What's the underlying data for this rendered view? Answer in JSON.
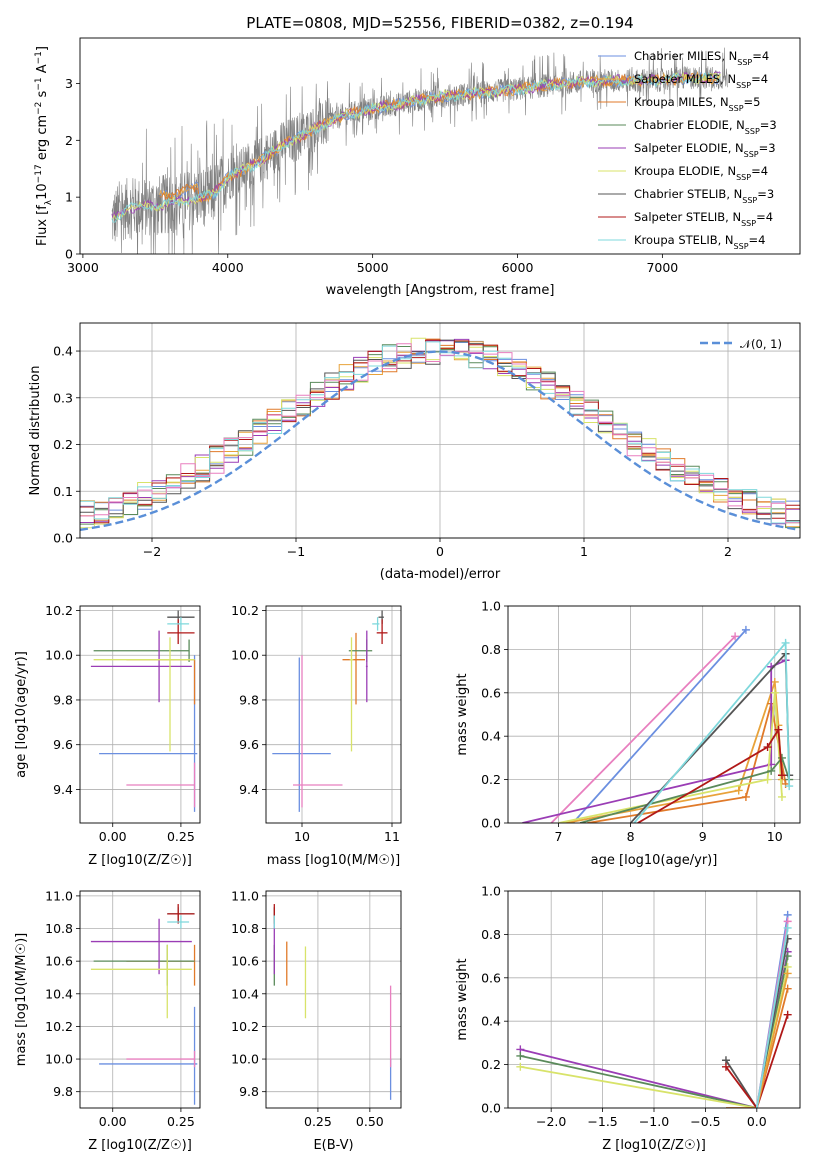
{
  "title": "PLATE=0808, MJD=52556, FIBERID=0382, z=0.194",
  "colors": {
    "Chabrier MILES": "#6b8fe0",
    "Salpeter MILES": "#e8a23a",
    "Kroupa MILES": "#e07a2a",
    "Chabrier ELODIE": "#5a8a5a",
    "Salpeter ELODIE": "#9a3db5",
    "Kroupa ELODIE": "#d8e36a",
    "Chabrier STELIB": "#555555",
    "Salpeter STELIB": "#b01818",
    "Kroupa STELIB": "#7fd8dc",
    "pink": "#e87fbf"
  },
  "chart_data": [
    {
      "type": "line",
      "id": "spectrum",
      "title": "PLATE=0808, MJD=52556, FIBERID=0382, z=0.194",
      "xlabel": "wavelength [Angstrom, rest frame]",
      "ylabel_parts": [
        "Flux [f",
        "λ",
        "10",
        "−17",
        " erg cm",
        "−2",
        " s",
        "−1",
        " A",
        "−1",
        "]"
      ],
      "xlim": [
        2980,
        7950
      ],
      "ylim": [
        0,
        3.8
      ],
      "xticks": [
        3000,
        4000,
        5000,
        6000,
        7000
      ],
      "yticks": [
        0,
        1,
        2,
        3
      ],
      "data_range": [
        3200,
        7450
      ],
      "continuum": [
        [
          3200,
          0.6
        ],
        [
          3300,
          0.8
        ],
        [
          3500,
          0.85
        ],
        [
          3650,
          0.9
        ],
        [
          3900,
          1.05
        ],
        [
          4000,
          1.35
        ],
        [
          4200,
          1.6
        ],
        [
          4400,
          1.95
        ],
        [
          4600,
          2.2
        ],
        [
          4800,
          2.45
        ],
        [
          5000,
          2.55
        ],
        [
          5200,
          2.65
        ],
        [
          5400,
          2.75
        ],
        [
          5600,
          2.8
        ],
        [
          5800,
          2.85
        ],
        [
          6000,
          2.9
        ],
        [
          6300,
          3.0
        ],
        [
          6600,
          3.05
        ],
        [
          6900,
          3.05
        ],
        [
          7200,
          3.1
        ],
        [
          7450,
          3.1
        ]
      ],
      "legend": [
        {
          "label": "Chabrier MILES, N",
          "sub": "SSP",
          "tail": "=4"
        },
        {
          "label": "Salpeter MILES, N",
          "sub": "SSP",
          "tail": "=4"
        },
        {
          "label": "Kroupa MILES, N",
          "sub": "SSP",
          "tail": "=5"
        },
        {
          "label": "Chabrier ELODIE, N",
          "sub": "SSP",
          "tail": "=3"
        },
        {
          "label": "Salpeter ELODIE, N",
          "sub": "SSP",
          "tail": "=3"
        },
        {
          "label": "Kroupa ELODIE, N",
          "sub": "SSP",
          "tail": "=4"
        },
        {
          "label": "Chabrier STELIB, N",
          "sub": "SSP",
          "tail": "=3"
        },
        {
          "label": "Salpeter STELIB, N",
          "sub": "SSP",
          "tail": "=4"
        },
        {
          "label": "Kroupa STELIB, N",
          "sub": "SSP",
          "tail": "=4"
        }
      ]
    },
    {
      "type": "bar",
      "id": "residuals",
      "xlabel": "(data-model)/error",
      "ylabel": "Normed distribution",
      "xlim": [
        -2.5,
        2.5
      ],
      "ylim": [
        0,
        0.46
      ],
      "xticks": [
        -2,
        -1,
        0,
        1,
        2
      ],
      "yticks": [
        0.0,
        0.1,
        0.2,
        0.3,
        0.4
      ],
      "legend": "𝒩(0, 1)",
      "legend_position": "top-right",
      "grid": true,
      "bin_width": 0.1
    },
    {
      "type": "scatter",
      "id": "age-vs-Z",
      "xlabel": "Z [log10(Z/Z☉)]",
      "ylabel": "age  [log10(age/yr)]",
      "xlim": [
        -0.12,
        0.32
      ],
      "ylim": [
        9.25,
        10.22
      ],
      "xticks": [
        0.0,
        0.25
      ],
      "yticks": [
        9.4,
        9.6,
        9.8,
        10.0,
        10.2
      ],
      "grid": true,
      "points": [
        {
          "c": "#6b8fe0",
          "x": 0.3,
          "y": 9.56,
          "xerr": [
            0.35,
            0.01
          ],
          "yerr": [
            0.26,
            0.44
          ]
        },
        {
          "c": "#e87fbf",
          "x": 0.3,
          "y": 9.42,
          "xerr": [
            0.25,
            0.0
          ],
          "yerr": [
            0.1,
            0.1
          ]
        },
        {
          "c": "#e07a2a",
          "x": 0.3,
          "y": 9.98,
          "xerr": [
            0.25,
            0.0
          ],
          "yerr": [
            0.2,
            0.0
          ]
        },
        {
          "c": "#5a8a5a",
          "x": 0.28,
          "y": 10.02,
          "xerr": [
            0.35,
            0.0
          ],
          "yerr": [
            0.05,
            0.05
          ]
        },
        {
          "c": "#9a3db5",
          "x": 0.17,
          "y": 9.95,
          "xerr": [
            0.25,
            0.12
          ],
          "yerr": [
            0.16,
            0.16
          ]
        },
        {
          "c": "#d8e36a",
          "x": 0.21,
          "y": 9.98,
          "xerr": [
            0.28,
            0.09
          ],
          "yerr": [
            0.41,
            0.1
          ]
        },
        {
          "c": "#555555",
          "x": 0.24,
          "y": 10.17,
          "xerr": [
            0.04,
            0.06
          ],
          "yerr": [
            0.03,
            0.03
          ]
        },
        {
          "c": "#b01818",
          "x": 0.24,
          "y": 10.1,
          "xerr": [
            0.04,
            0.06
          ],
          "yerr": [
            0.05,
            0.06
          ]
        },
        {
          "c": "#7fd8dc",
          "x": 0.25,
          "y": 10.14,
          "xerr": [
            0.05,
            0.03
          ],
          "yerr": [
            0.03,
            0.03
          ]
        }
      ]
    },
    {
      "type": "scatter",
      "id": "age-vs-mass",
      "xlabel": "mass [log10(M/M☉)]",
      "ylabel": "",
      "xlim": [
        9.6,
        11.1
      ],
      "ylim": [
        9.25,
        10.22
      ],
      "xticks": [
        10,
        11
      ],
      "yticks": [
        9.4,
        9.6,
        9.8,
        10.0,
        10.2
      ],
      "grid": true,
      "points": [
        {
          "c": "#6b8fe0",
          "x": 9.97,
          "y": 9.56,
          "xerr": [
            0.3,
            0.35
          ],
          "yerr": [
            0.26,
            0.43
          ]
        },
        {
          "c": "#e87fbf",
          "x": 10.0,
          "y": 9.42,
          "xerr": [
            0.1,
            0.45
          ],
          "yerr": [
            0.1,
            0.58
          ]
        },
        {
          "c": "#e07a2a",
          "x": 10.6,
          "y": 9.98,
          "xerr": [
            0.15,
            0.1
          ],
          "yerr": [
            0.2,
            0.12
          ]
        },
        {
          "c": "#5a8a5a",
          "x": 10.72,
          "y": 10.02,
          "xerr": [
            0.2,
            0.06
          ],
          "yerr": [
            0.05,
            0.05
          ]
        },
        {
          "c": "#9a3db5",
          "x": 10.72,
          "y": 9.95,
          "xerr": [
            0.01,
            0.01
          ],
          "yerr": [
            0.16,
            0.16
          ]
        },
        {
          "c": "#d8e36a",
          "x": 10.55,
          "y": 9.98,
          "xerr": [
            0.02,
            0.02
          ],
          "yerr": [
            0.41,
            0.1
          ]
        },
        {
          "c": "#555555",
          "x": 10.89,
          "y": 10.17,
          "xerr": [
            0.04,
            0.02
          ],
          "yerr": [
            0.03,
            0.03
          ]
        },
        {
          "c": "#b01818",
          "x": 10.89,
          "y": 10.1,
          "xerr": [
            0.06,
            0.06
          ],
          "yerr": [
            0.05,
            0.06
          ]
        },
        {
          "c": "#7fd8dc",
          "x": 10.84,
          "y": 10.14,
          "xerr": [
            0.06,
            0.02
          ],
          "yerr": [
            0.03,
            0.03
          ]
        }
      ]
    },
    {
      "type": "line",
      "id": "weight-vs-age",
      "xlabel": "age  [log10(age/yr)]",
      "ylabel": "mass weight",
      "xlim": [
        6.3,
        10.35
      ],
      "ylim": [
        0,
        1
      ],
      "xticks": [
        7,
        8,
        9,
        10
      ],
      "yticks": [
        0.0,
        0.2,
        0.4,
        0.6,
        0.8,
        1.0
      ],
      "grid": true,
      "series": [
        {
          "c": "#e87fbf",
          "pts": [
            [
              6.9,
              0.0
            ],
            [
              9.45,
              0.86
            ]
          ]
        },
        {
          "c": "#6b8fe0",
          "pts": [
            [
              7.2,
              0.0
            ],
            [
              9.6,
              0.89
            ]
          ]
        },
        {
          "c": "#e8a23a",
          "pts": [
            [
              7.1,
              0.0
            ],
            [
              9.5,
              0.15
            ],
            [
              10.0,
              0.65
            ],
            [
              10.05,
              0.45
            ],
            [
              10.1,
              0.2
            ]
          ]
        },
        {
          "c": "#e07a2a",
          "pts": [
            [
              7.4,
              0.0
            ],
            [
              9.6,
              0.12
            ],
            [
              9.95,
              0.55
            ],
            [
              10.15,
              0.18
            ]
          ]
        },
        {
          "c": "#9a3db5",
          "pts": [
            [
              6.5,
              0.0
            ],
            [
              9.95,
              0.27
            ],
            [
              9.95,
              0.72
            ],
            [
              10.15,
              0.75
            ]
          ]
        },
        {
          "c": "#d8e36a",
          "pts": [
            [
              7.0,
              0.0
            ],
            [
              9.9,
              0.2
            ],
            [
              10.0,
              0.6
            ],
            [
              10.1,
              0.12
            ]
          ]
        },
        {
          "c": "#5a8a5a",
          "pts": [
            [
              7.3,
              0.0
            ],
            [
              9.95,
              0.24
            ],
            [
              10.1,
              0.3
            ],
            [
              10.2,
              0.2
            ]
          ]
        },
        {
          "c": "#555555",
          "pts": [
            [
              8.0,
              0.0
            ],
            [
              10.15,
              0.78
            ],
            [
              10.2,
              0.22
            ]
          ]
        },
        {
          "c": "#b01818",
          "pts": [
            [
              8.1,
              0.0
            ],
            [
              9.9,
              0.35
            ],
            [
              10.05,
              0.43
            ],
            [
              10.1,
              0.22
            ]
          ]
        },
        {
          "c": "#7fd8dc",
          "pts": [
            [
              8.05,
              0.0
            ],
            [
              10.15,
              0.83
            ],
            [
              10.2,
              0.17
            ]
          ]
        }
      ]
    },
    {
      "type": "scatter",
      "id": "mass-vs-Z",
      "xlabel": "Z [log10(Z/Z☉)]",
      "ylabel": "mass [log10(M/M☉)]",
      "xlim": [
        -0.12,
        0.32
      ],
      "ylim": [
        9.7,
        11.03
      ],
      "xticks": [
        0.0,
        0.25
      ],
      "yticks": [
        9.8,
        10.0,
        10.2,
        10.4,
        10.6,
        10.8,
        11.0
      ],
      "grid": true,
      "points": [
        {
          "c": "#6b8fe0",
          "x": 0.3,
          "y": 9.97,
          "xerr": [
            0.35,
            0.01
          ],
          "yerr": [
            0.25,
            0.35
          ]
        },
        {
          "c": "#e87fbf",
          "x": 0.3,
          "y": 10.0,
          "xerr": [
            0.25,
            0.0
          ],
          "yerr": [
            0.05,
            0.05
          ]
        },
        {
          "c": "#e07a2a",
          "x": 0.3,
          "y": 10.6,
          "xerr": [
            0.25,
            0.0
          ],
          "yerr": [
            0.15,
            0.1
          ]
        },
        {
          "c": "#5a8a5a",
          "x": 0.2,
          "y": 10.6,
          "xerr": [
            0.27,
            0.1
          ],
          "yerr": [
            0.15,
            0.1
          ]
        },
        {
          "c": "#9a3db5",
          "x": 0.17,
          "y": 10.72,
          "xerr": [
            0.25,
            0.12
          ],
          "yerr": [
            0.2,
            0.14
          ]
        },
        {
          "c": "#d8e36a",
          "x": 0.2,
          "y": 10.55,
          "xerr": [
            0.28,
            0.09
          ],
          "yerr": [
            0.3,
            0.15
          ]
        },
        {
          "c": "#555555",
          "x": 0.24,
          "y": 10.89,
          "xerr": [
            0.04,
            0.06
          ],
          "yerr": [
            0.04,
            0.04
          ]
        },
        {
          "c": "#b01818",
          "x": 0.24,
          "y": 10.89,
          "xerr": [
            0.04,
            0.06
          ],
          "yerr": [
            0.06,
            0.06
          ]
        },
        {
          "c": "#7fd8dc",
          "x": 0.25,
          "y": 10.84,
          "xerr": [
            0.05,
            0.03
          ],
          "yerr": [
            0.04,
            0.04
          ]
        }
      ]
    },
    {
      "type": "scatter",
      "id": "mass-vs-ebv",
      "xlabel": "E(B-V)",
      "ylabel": "",
      "xlim": [
        0.0,
        0.65
      ],
      "ylim": [
        9.7,
        11.03
      ],
      "xticks": [
        0.25,
        0.5
      ],
      "yticks": [
        9.8,
        10.0,
        10.2,
        10.4,
        10.6,
        10.8,
        11.0
      ],
      "grid": true,
      "points": [
        {
          "c": "#6b8fe0",
          "x": 0.6,
          "y": 9.97,
          "yerr": [
            0.22,
            0.03
          ]
        },
        {
          "c": "#e87fbf",
          "x": 0.6,
          "y": 10.0,
          "yerr": [
            0.05,
            0.45
          ]
        },
        {
          "c": "#e07a2a",
          "x": 0.1,
          "y": 10.6,
          "yerr": [
            0.15,
            0.12
          ]
        },
        {
          "c": "#5a8a5a",
          "x": 0.04,
          "y": 10.6,
          "yerr": [
            0.15,
            0.1
          ]
        },
        {
          "c": "#9a3db5",
          "x": 0.04,
          "y": 10.72,
          "yerr": [
            0.2,
            0.15
          ]
        },
        {
          "c": "#d8e36a",
          "x": 0.19,
          "y": 10.55,
          "yerr": [
            0.3,
            0.14
          ]
        },
        {
          "c": "#555555",
          "x": 0.04,
          "y": 10.89,
          "yerr": [
            0.04,
            0.04
          ]
        },
        {
          "c": "#b01818",
          "x": 0.04,
          "y": 10.89,
          "yerr": [
            0.06,
            0.06
          ]
        },
        {
          "c": "#7fd8dc",
          "x": 0.04,
          "y": 10.84,
          "yerr": [
            0.04,
            0.04
          ]
        }
      ]
    },
    {
      "type": "line",
      "id": "weight-vs-Z",
      "xlabel": "Z [log10(Z/Z☉)]",
      "ylabel": "mass weight",
      "xlim": [
        -2.42,
        0.42
      ],
      "ylim": [
        0,
        1
      ],
      "xticks": [
        -2.0,
        -1.5,
        -1.0,
        -0.5,
        0.0
      ],
      "yticks": [
        0.0,
        0.2,
        0.4,
        0.6,
        0.8,
        1.0
      ],
      "grid": true,
      "series": [
        {
          "c": "#9a3db5",
          "pts": [
            [
              -2.3,
              0.27
            ],
            [
              0.0,
              0.0
            ],
            [
              0.3,
              0.72
            ]
          ]
        },
        {
          "c": "#5a8a5a",
          "pts": [
            [
              -2.3,
              0.24
            ],
            [
              0.0,
              0.0
            ],
            [
              0.3,
              0.7
            ]
          ]
        },
        {
          "c": "#d8e36a",
          "pts": [
            [
              -2.3,
              0.19
            ],
            [
              0.0,
              0.0
            ],
            [
              0.3,
              0.65
            ]
          ]
        },
        {
          "c": "#555555",
          "pts": [
            [
              -0.3,
              0.22
            ],
            [
              0.0,
              0.0
            ],
            [
              0.3,
              0.78
            ]
          ]
        },
        {
          "c": "#b01818",
          "pts": [
            [
              -0.3,
              0.19
            ],
            [
              0.0,
              0.0
            ],
            [
              0.3,
              0.43
            ]
          ]
        },
        {
          "c": "#e07a2a",
          "pts": [
            [
              -0.3,
              0.0
            ],
            [
              0.0,
              0.0
            ],
            [
              0.3,
              0.55
            ]
          ]
        },
        {
          "c": "#e8a23a",
          "pts": [
            [
              0.0,
              0.0
            ],
            [
              0.3,
              0.62
            ]
          ]
        },
        {
          "c": "#6b8fe0",
          "pts": [
            [
              0.0,
              0.0
            ],
            [
              0.3,
              0.89
            ]
          ]
        },
        {
          "c": "#e87fbf",
          "pts": [
            [
              0.0,
              0.0
            ],
            [
              0.3,
              0.86
            ]
          ]
        },
        {
          "c": "#7fd8dc",
          "pts": [
            [
              0.0,
              0.0
            ],
            [
              0.3,
              0.83
            ]
          ]
        }
      ]
    }
  ]
}
